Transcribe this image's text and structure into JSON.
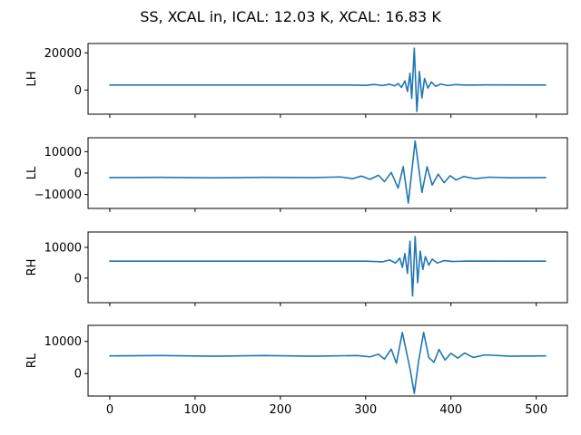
{
  "chart_data": {
    "type": "line",
    "title": "SS, XCAL in, ICAL: 12.03 K, XCAL: 16.83 K",
    "line_color": "#1f77b4",
    "sharex": true,
    "xlim": [
      -25.5,
      536.5
    ],
    "xticks": [
      0,
      100,
      200,
      300,
      400,
      500
    ],
    "panels": [
      {
        "ylabel": "LH",
        "ylim": [
          -13000,
          25000
        ],
        "yticks": [
          0,
          20000
        ],
        "ytick_labels": [
          "0",
          "20000"
        ],
        "baseline": 2700,
        "points": [
          [
            0,
            2700
          ],
          [
            280,
            2700
          ],
          [
            300,
            2500
          ],
          [
            310,
            3000
          ],
          [
            320,
            2400
          ],
          [
            328,
            3100
          ],
          [
            334,
            2200
          ],
          [
            338,
            3500
          ],
          [
            342,
            1400
          ],
          [
            346,
            4900
          ],
          [
            349,
            -800
          ],
          [
            352,
            9000
          ],
          [
            354,
            -4500
          ],
          [
            357,
            22500
          ],
          [
            360,
            -11500
          ],
          [
            363,
            10000
          ],
          [
            366,
            -4300
          ],
          [
            369,
            6200
          ],
          [
            373,
            1000
          ],
          [
            377,
            4300
          ],
          [
            382,
            2000
          ],
          [
            388,
            3200
          ],
          [
            396,
            2400
          ],
          [
            405,
            2900
          ],
          [
            420,
            2600
          ],
          [
            440,
            2750
          ],
          [
            511,
            2700
          ]
        ]
      },
      {
        "ylabel": "LL",
        "ylim": [
          -16500,
          16500
        ],
        "yticks": [
          -10000,
          0,
          10000
        ],
        "ytick_labels": [
          "−10000",
          "0",
          "10000"
        ],
        "baseline": -2100,
        "points": [
          [
            0,
            -2100
          ],
          [
            60,
            -2000
          ],
          [
            120,
            -2200
          ],
          [
            180,
            -2000
          ],
          [
            240,
            -2100
          ],
          [
            270,
            -1800
          ],
          [
            285,
            -2600
          ],
          [
            295,
            -1400
          ],
          [
            305,
            -2900
          ],
          [
            315,
            -1000
          ],
          [
            322,
            -4000
          ],
          [
            330,
            300
          ],
          [
            338,
            -7000
          ],
          [
            344,
            3000
          ],
          [
            350,
            -14000
          ],
          [
            358,
            15000
          ],
          [
            366,
            -9000
          ],
          [
            372,
            3000
          ],
          [
            378,
            -5600
          ],
          [
            385,
            -500
          ],
          [
            392,
            -4500
          ],
          [
            399,
            -1200
          ],
          [
            406,
            -3200
          ],
          [
            415,
            -1600
          ],
          [
            428,
            -2600
          ],
          [
            445,
            -1900
          ],
          [
            470,
            -2200
          ],
          [
            511,
            -2100
          ]
        ]
      },
      {
        "ylabel": "RH",
        "ylim": [
          -8000,
          15000
        ],
        "yticks": [
          0,
          10000
        ],
        "ytick_labels": [
          "0",
          "10000"
        ],
        "baseline": 5500,
        "points": [
          [
            0,
            5500
          ],
          [
            300,
            5500
          ],
          [
            320,
            5300
          ],
          [
            328,
            5900
          ],
          [
            335,
            4900
          ],
          [
            340,
            6500
          ],
          [
            343,
            3500
          ],
          [
            346,
            8000
          ],
          [
            349,
            1500
          ],
          [
            352,
            12000
          ],
          [
            355,
            -5800
          ],
          [
            358,
            13500
          ],
          [
            361,
            -1500
          ],
          [
            364,
            8800
          ],
          [
            367,
            2800
          ],
          [
            370,
            7000
          ],
          [
            374,
            4200
          ],
          [
            378,
            6200
          ],
          [
            384,
            4900
          ],
          [
            392,
            5700
          ],
          [
            402,
            5400
          ],
          [
            420,
            5550
          ],
          [
            511,
            5500
          ]
        ]
      },
      {
        "ylabel": "RL",
        "ylim": [
          -7000,
          15000
        ],
        "yticks": [
          0,
          10000
        ],
        "ytick_labels": [
          "0",
          "10000"
        ],
        "baseline": 5500,
        "points": [
          [
            0,
            5500
          ],
          [
            60,
            5600
          ],
          [
            120,
            5400
          ],
          [
            180,
            5600
          ],
          [
            240,
            5400
          ],
          [
            290,
            5600
          ],
          [
            305,
            5200
          ],
          [
            315,
            6000
          ],
          [
            322,
            4500
          ],
          [
            330,
            7600
          ],
          [
            336,
            3200
          ],
          [
            343,
            12800
          ],
          [
            352,
            1500
          ],
          [
            357,
            -6200
          ],
          [
            362,
            3800
          ],
          [
            368,
            12800
          ],
          [
            374,
            5000
          ],
          [
            380,
            3500
          ],
          [
            386,
            7500
          ],
          [
            393,
            4200
          ],
          [
            400,
            6300
          ],
          [
            408,
            4800
          ],
          [
            416,
            6400
          ],
          [
            426,
            5000
          ],
          [
            440,
            5800
          ],
          [
            470,
            5400
          ],
          [
            511,
            5500
          ]
        ]
      }
    ]
  }
}
